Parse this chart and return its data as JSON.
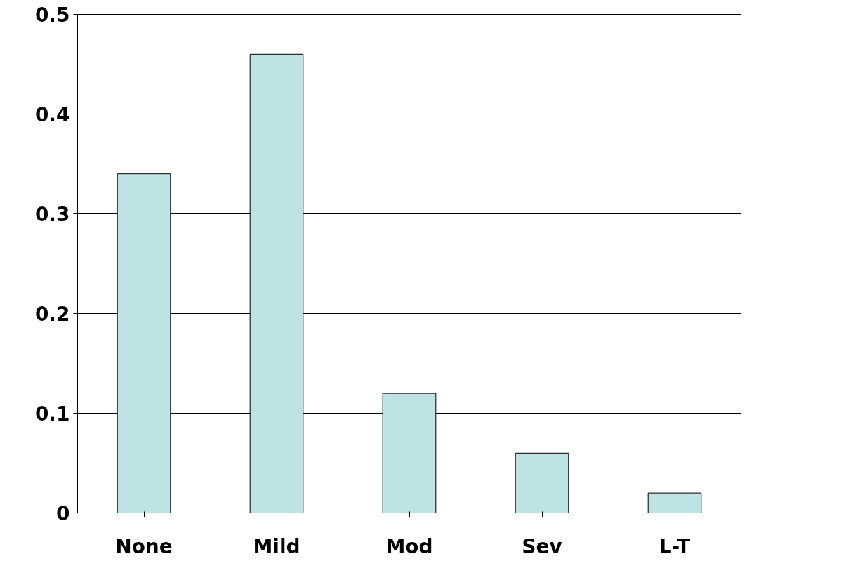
{
  "chart_data": {
    "type": "bar",
    "categories": [
      "None",
      "Mild",
      "Mod",
      "Sev",
      "L-T"
    ],
    "values": [
      0.34,
      0.46,
      0.12,
      0.06,
      0.02
    ],
    "color": "#bde3e5",
    "ylim": [
      0,
      0.5
    ],
    "yticks": [
      0,
      0.1,
      0.2,
      0.3,
      0.4,
      0.5
    ],
    "grid": "y"
  }
}
